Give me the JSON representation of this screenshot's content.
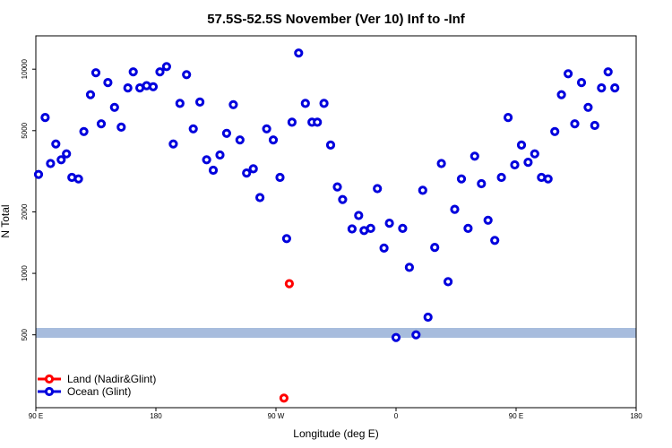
{
  "chart_data": {
    "type": "scatter",
    "title": "57.5S-52.5S November (Ver 10)   Inf to -Inf",
    "xlabel": "Longitude (deg E)",
    "ylabel": "N Total",
    "x_ticks": [
      "90 E",
      "180",
      "90 W",
      "0",
      "90 E",
      "180"
    ],
    "y_ticks": [
      "500",
      "1000",
      "2000",
      "5000",
      "10000"
    ],
    "y_scale": "log",
    "grid": false,
    "legend_position": "bottom-left",
    "band_color": "#a7bcdd",
    "land_color": "#ff0000",
    "ocean_color": "#0000dd",
    "series": [
      {
        "name": "Ocean (Glint)",
        "points": [
          [
            92,
            3050
          ],
          [
            97,
            5800
          ],
          [
            101,
            3450
          ],
          [
            105,
            4300
          ],
          [
            109,
            3600
          ],
          [
            113,
            3850
          ],
          [
            117,
            2950
          ],
          [
            122,
            2900
          ],
          [
            126,
            4950
          ],
          [
            131,
            7500
          ],
          [
            135,
            9600
          ],
          [
            139,
            5400
          ],
          [
            144,
            8600
          ],
          [
            149,
            6500
          ],
          [
            154,
            5200
          ],
          [
            159,
            8100
          ],
          [
            163,
            9700
          ],
          [
            168,
            8100
          ],
          [
            173,
            8300
          ],
          [
            178,
            8200
          ],
          [
            183,
            9700
          ],
          [
            188,
            10300
          ],
          [
            193,
            4300
          ],
          [
            198,
            6800
          ],
          [
            203,
            9400
          ],
          [
            208,
            5100
          ],
          [
            213,
            6900
          ],
          [
            218,
            3600
          ],
          [
            223,
            3200
          ],
          [
            228,
            3800
          ],
          [
            233,
            4850
          ],
          [
            238,
            6700
          ],
          [
            243,
            4500
          ],
          [
            248,
            3100
          ],
          [
            253,
            3250
          ],
          [
            258,
            2350
          ],
          [
            263,
            5100
          ],
          [
            268,
            4500
          ],
          [
            273,
            2950
          ],
          [
            278,
            1480
          ],
          [
            282,
            5500
          ],
          [
            287,
            12000
          ],
          [
            292,
            6800
          ],
          [
            297,
            5500
          ],
          [
            301,
            5500
          ],
          [
            306,
            6800
          ],
          [
            311,
            4250
          ],
          [
            316,
            2650
          ],
          [
            320,
            2300
          ],
          [
            327,
            1650
          ],
          [
            332,
            1920
          ],
          [
            336,
            1620
          ],
          [
            341,
            1660
          ],
          [
            346,
            2600
          ],
          [
            351,
            1330
          ],
          [
            355,
            1760
          ],
          [
            360,
            485
          ],
          [
            365,
            1660
          ],
          [
            370,
            1070
          ],
          [
            375,
            500
          ],
          [
            380,
            2550
          ],
          [
            384,
            610
          ],
          [
            389,
            1340
          ],
          [
            394,
            3450
          ],
          [
            399,
            910
          ],
          [
            404,
            2060
          ],
          [
            409,
            2900
          ],
          [
            414,
            1660
          ],
          [
            419,
            3750
          ],
          [
            424,
            2750
          ],
          [
            429,
            1820
          ],
          [
            434,
            1450
          ],
          [
            439,
            2950
          ],
          [
            444,
            5800
          ],
          [
            449,
            3400
          ],
          [
            454,
            4250
          ],
          [
            459,
            3500
          ],
          [
            464,
            3850
          ],
          [
            469,
            2950
          ],
          [
            474,
            2900
          ],
          [
            479,
            4950
          ],
          [
            484,
            7500
          ],
          [
            489,
            9500
          ],
          [
            494,
            5400
          ],
          [
            499,
            8600
          ],
          [
            504,
            6500
          ],
          [
            509,
            5300
          ],
          [
            514,
            8100
          ],
          [
            519,
            9700
          ],
          [
            524,
            8100
          ]
        ]
      },
      {
        "name": "Land (Nadir&Glint)",
        "points": [
          [
            280,
            890
          ],
          [
            276,
            245
          ]
        ]
      }
    ]
  },
  "legend": [
    {
      "label": "Land (Nadir&Glint)"
    },
    {
      "label": "Ocean (Glint)"
    }
  ]
}
